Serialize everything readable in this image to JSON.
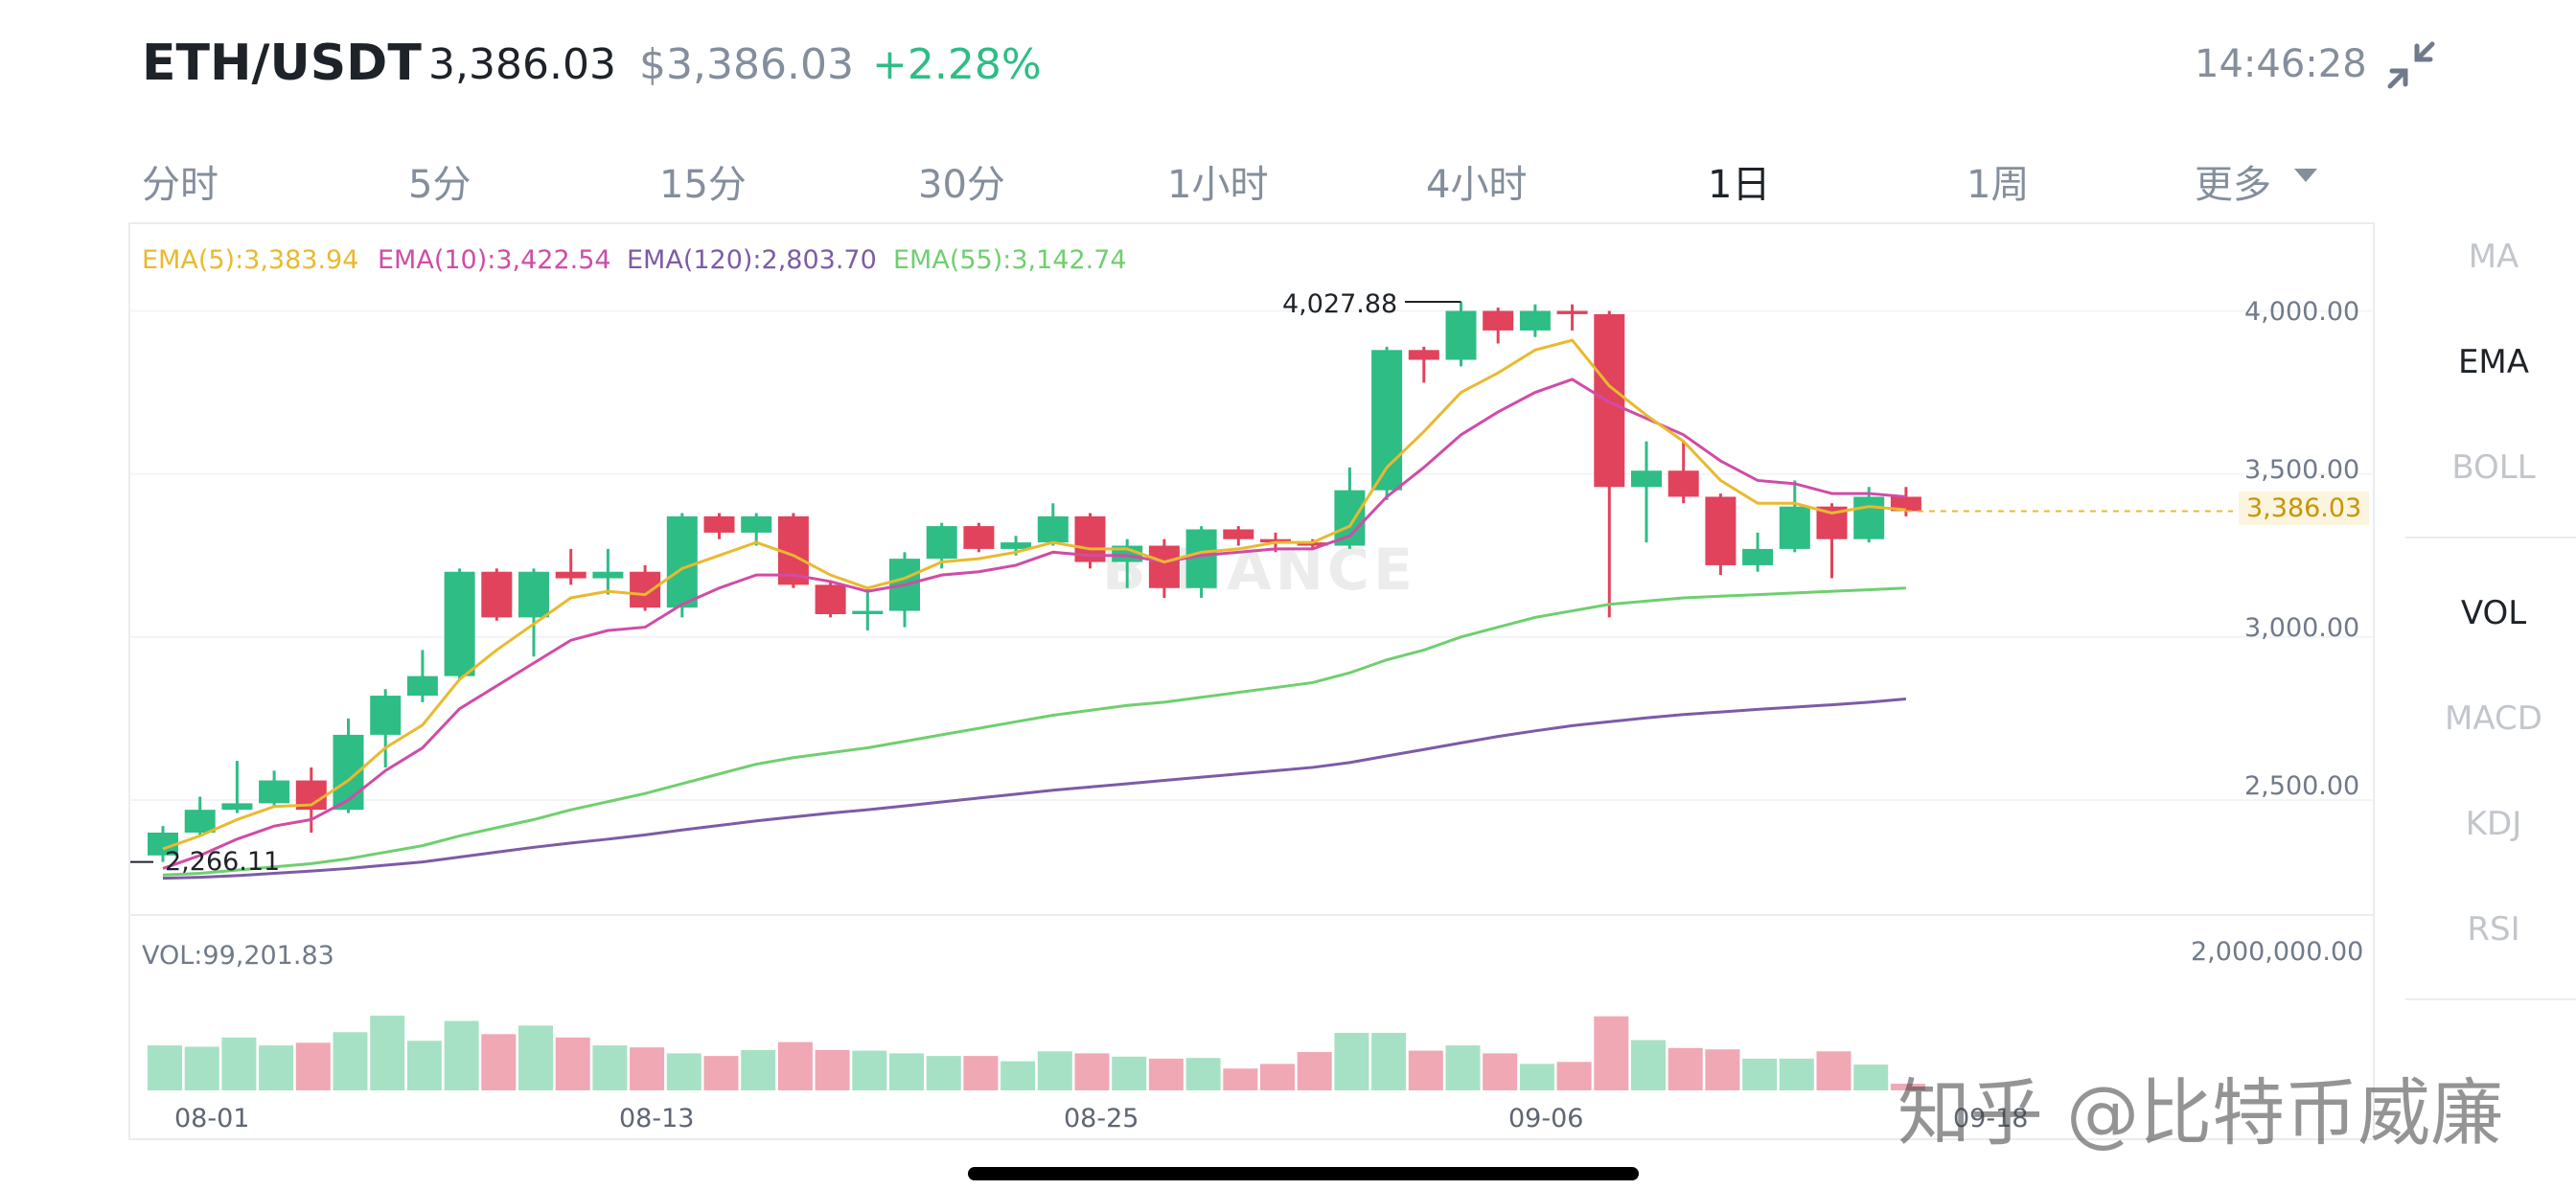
{
  "header": {
    "pair": "ETH/USDT",
    "last_price": "3,386.03",
    "usd_price": "$3,386.03",
    "change": "+2.28%",
    "time": "14:46:28",
    "collapse_icon": "collapse-arrows-icon"
  },
  "tabs": [
    {
      "label": "分时"
    },
    {
      "label": "5分"
    },
    {
      "label": "15分"
    },
    {
      "label": "30分"
    },
    {
      "label": "1小时"
    },
    {
      "label": "4小时"
    },
    {
      "label": "1日"
    },
    {
      "label": "1周"
    },
    {
      "label": "更多"
    }
  ],
  "active_tab": "1日",
  "side_indicators": [
    {
      "label": "MA",
      "active": false
    },
    {
      "label": "EMA",
      "active": true
    },
    {
      "label": "BOLL",
      "active": false
    },
    {
      "label": "VOL",
      "active": true
    },
    {
      "label": "MACD",
      "active": false
    },
    {
      "label": "KDJ",
      "active": false
    },
    {
      "label": "RSI",
      "active": false
    }
  ],
  "legend": {
    "ema5": "EMA(5):3,383.94",
    "ema10": "EMA(10):3,422.54",
    "ema120": "EMA(120):2,803.70",
    "ema55": "EMA(55):3,142.74",
    "vol": "VOL:99,201.83"
  },
  "colors": {
    "up": "#2ebd85",
    "down": "#e0435b",
    "ema5": "#e9b92f",
    "ema10": "#d04ca6",
    "ema120": "#7d5ba6",
    "ema55": "#6fcf6f",
    "up_vol": "#a6e1c5",
    "down_vol": "#f0a8b4"
  },
  "annotations": {
    "high": "4,027.88",
    "low": "2,266.11",
    "last_price_tag": "3,386.03"
  },
  "watermark": "知乎 @比特币威廉",
  "watermark_logo": "BINANCE",
  "chart_data": {
    "type": "candlestick",
    "y_ticks": [
      "4,000.00",
      "3,500.00",
      "3,000.00",
      "2,500.00"
    ],
    "y_tick_values": [
      4000,
      3500,
      3000,
      2500
    ],
    "ylim": [
      2162,
      4260
    ],
    "vol_tick": "2,000,000.00",
    "vol_max": 2000000,
    "x_ticks": [
      "08-01",
      "08-13",
      "08-25",
      "09-06",
      "09-18"
    ],
    "x_tick_index": [
      1,
      13,
      25,
      37,
      49
    ],
    "candles": [
      [
        2330,
        2400,
        2420,
        2310
      ],
      [
        2400,
        2470,
        2510,
        2390
      ],
      [
        2470,
        2490,
        2620,
        2460
      ],
      [
        2490,
        2560,
        2590,
        2480
      ],
      [
        2560,
        2470,
        2600,
        2400
      ],
      [
        2470,
        2700,
        2750,
        2460
      ],
      [
        2700,
        2820,
        2840,
        2600
      ],
      [
        2820,
        2880,
        2960,
        2800
      ],
      [
        2880,
        3200,
        3210,
        2870
      ],
      [
        3200,
        3060,
        3210,
        3050
      ],
      [
        3060,
        3200,
        3210,
        2940
      ],
      [
        3200,
        3180,
        3270,
        3160
      ],
      [
        3180,
        3200,
        3270,
        3130
      ],
      [
        3200,
        3090,
        3220,
        3080
      ],
      [
        3090,
        3370,
        3380,
        3060
      ],
      [
        3370,
        3320,
        3380,
        3300
      ],
      [
        3320,
        3370,
        3380,
        3280
      ],
      [
        3370,
        3160,
        3380,
        3150
      ],
      [
        3160,
        3070,
        3170,
        3060
      ],
      [
        3070,
        3080,
        3150,
        3020
      ],
      [
        3080,
        3240,
        3260,
        3030
      ],
      [
        3240,
        3340,
        3350,
        3210
      ],
      [
        3340,
        3270,
        3350,
        3260
      ],
      [
        3270,
        3290,
        3310,
        3250
      ],
      [
        3290,
        3370,
        3410,
        3280
      ],
      [
        3370,
        3230,
        3380,
        3210
      ],
      [
        3230,
        3280,
        3300,
        3150
      ],
      [
        3280,
        3150,
        3300,
        3120
      ],
      [
        3150,
        3330,
        3340,
        3120
      ],
      [
        3330,
        3300,
        3340,
        3280
      ],
      [
        3300,
        3290,
        3320,
        3260
      ],
      [
        3290,
        3280,
        3300,
        3270
      ],
      [
        3280,
        3450,
        3520,
        3270
      ],
      [
        3450,
        3880,
        3890,
        3420
      ],
      [
        3880,
        3850,
        3890,
        3780
      ],
      [
        3850,
        4000,
        4028,
        3830
      ],
      [
        4000,
        3940,
        4010,
        3900
      ],
      [
        3940,
        4000,
        4020,
        3920
      ],
      [
        4000,
        3990,
        4020,
        3940
      ],
      [
        3990,
        3460,
        4000,
        3060
      ],
      [
        3460,
        3510,
        3600,
        3290
      ],
      [
        3510,
        3430,
        3600,
        3410
      ],
      [
        3430,
        3220,
        3440,
        3190
      ],
      [
        3220,
        3270,
        3320,
        3200
      ],
      [
        3270,
        3400,
        3480,
        3260
      ],
      [
        3400,
        3300,
        3410,
        3180
      ],
      [
        3300,
        3430,
        3460,
        3290
      ],
      [
        3430,
        3386,
        3460,
        3370
      ]
    ],
    "volumes": [
      680000,
      660000,
      800000,
      680000,
      720000,
      880000,
      1130000,
      750000,
      1050000,
      850000,
      980000,
      800000,
      680000,
      650000,
      560000,
      520000,
      610000,
      730000,
      610000,
      600000,
      560000,
      520000,
      520000,
      440000,
      590000,
      560000,
      510000,
      480000,
      490000,
      330000,
      400000,
      580000,
      870000,
      870000,
      600000,
      680000,
      560000,
      400000,
      430000,
      1120000,
      760000,
      640000,
      620000,
      480000,
      480000,
      590000,
      390000,
      100000
    ],
    "ema5": [
      2350,
      2390,
      2440,
      2480,
      2485,
      2560,
      2660,
      2730,
      2870,
      2960,
      3040,
      3120,
      3140,
      3130,
      3210,
      3250,
      3290,
      3250,
      3190,
      3150,
      3180,
      3230,
      3240,
      3260,
      3290,
      3270,
      3270,
      3230,
      3260,
      3270,
      3290,
      3290,
      3340,
      3520,
      3630,
      3750,
      3810,
      3880,
      3910,
      3770,
      3680,
      3600,
      3480,
      3410,
      3410,
      3380,
      3400,
      3390
    ],
    "ema10": [
      2290,
      2330,
      2380,
      2420,
      2440,
      2500,
      2590,
      2660,
      2780,
      2850,
      2920,
      2990,
      3020,
      3030,
      3100,
      3150,
      3190,
      3190,
      3170,
      3140,
      3160,
      3190,
      3200,
      3220,
      3260,
      3250,
      3250,
      3230,
      3250,
      3260,
      3270,
      3270,
      3310,
      3430,
      3520,
      3620,
      3690,
      3750,
      3790,
      3720,
      3670,
      3620,
      3540,
      3480,
      3470,
      3440,
      3440,
      3430
    ],
    "ema55": [
      2270,
      2275,
      2285,
      2295,
      2305,
      2320,
      2340,
      2360,
      2390,
      2415,
      2440,
      2470,
      2495,
      2520,
      2550,
      2580,
      2610,
      2630,
      2645,
      2660,
      2680,
      2700,
      2720,
      2740,
      2760,
      2775,
      2790,
      2800,
      2815,
      2830,
      2845,
      2860,
      2890,
      2930,
      2960,
      3000,
      3030,
      3060,
      3080,
      3100,
      3110,
      3120,
      3125,
      3130,
      3135,
      3140,
      3145,
      3150
    ],
    "ema120": [
      2260,
      2263,
      2268,
      2275,
      2282,
      2290,
      2300,
      2310,
      2325,
      2340,
      2355,
      2368,
      2380,
      2393,
      2408,
      2422,
      2436,
      2448,
      2460,
      2470,
      2482,
      2494,
      2506,
      2518,
      2530,
      2540,
      2550,
      2560,
      2570,
      2580,
      2590,
      2600,
      2615,
      2635,
      2655,
      2675,
      2695,
      2712,
      2728,
      2740,
      2752,
      2762,
      2770,
      2778,
      2785,
      2792,
      2800,
      2810
    ]
  }
}
